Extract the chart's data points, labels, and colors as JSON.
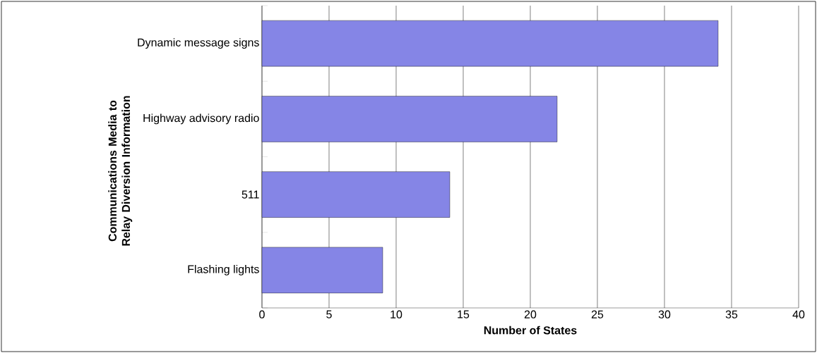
{
  "chart_data": {
    "type": "bar",
    "orientation": "horizontal",
    "categories": [
      "Dynamic message signs",
      "Highway advisory radio",
      "511",
      "Flashing lights"
    ],
    "values": [
      34,
      22,
      14,
      9
    ],
    "color": "#8585e6",
    "xlim": [
      0,
      40
    ],
    "xticks": [
      0,
      5,
      10,
      15,
      20,
      25,
      30,
      35,
      40
    ],
    "grid": "x",
    "xlabel": "Number of States",
    "ylabel": "Communications Media to Relay Diversion Information"
  }
}
